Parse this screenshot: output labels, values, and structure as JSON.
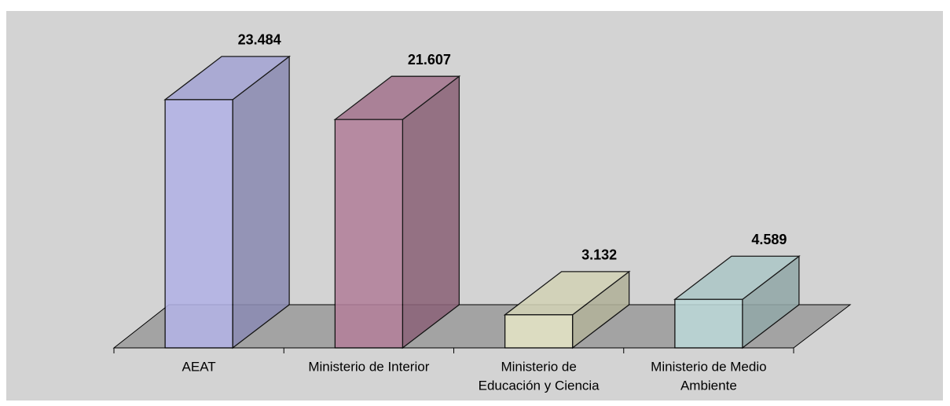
{
  "chart_data": {
    "type": "bar3d",
    "categories": [
      [
        "AEAT"
      ],
      [
        "Ministerio de Interior"
      ],
      [
        "Ministerio de",
        "Educación y Ciencia"
      ],
      [
        "Ministerio de Medio",
        "Ambiente"
      ]
    ],
    "values": [
      23.484,
      21.607,
      3.132,
      4.589
    ],
    "colors": [
      "#b3b3e6",
      "#b3809b",
      "#e4e4c6",
      "#bcd8d8"
    ]
  }
}
